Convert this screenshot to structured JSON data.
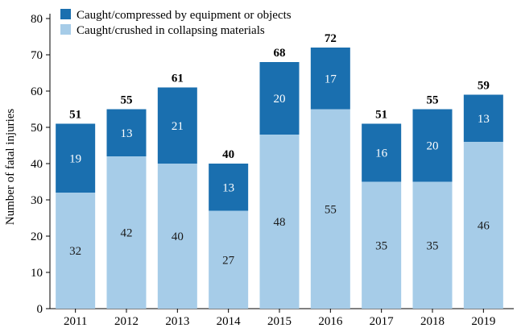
{
  "chart_data": {
    "type": "bar",
    "stacked": true,
    "categories": [
      "2011",
      "2012",
      "2013",
      "2014",
      "2015",
      "2016",
      "2017",
      "2018",
      "2019"
    ],
    "series": [
      {
        "name": "Caught/crushed in collapsing materials",
        "color": "#a6cce8",
        "values": [
          32,
          42,
          40,
          27,
          48,
          55,
          35,
          35,
          46
        ]
      },
      {
        "name": "Caught/compressed by equipment or objects",
        "color": "#1a6faf",
        "values": [
          19,
          13,
          21,
          13,
          20,
          17,
          16,
          20,
          13
        ]
      }
    ],
    "totals": [
      51,
      55,
      61,
      40,
      68,
      72,
      51,
      55,
      59
    ],
    "ylabel": "Number of fatal injuries",
    "xlabel": "",
    "ylim": [
      0,
      80
    ],
    "yticks": [
      0,
      10,
      20,
      30,
      40,
      50,
      60,
      70,
      80
    ],
    "grid": false,
    "legend_placement": "top-left"
  }
}
